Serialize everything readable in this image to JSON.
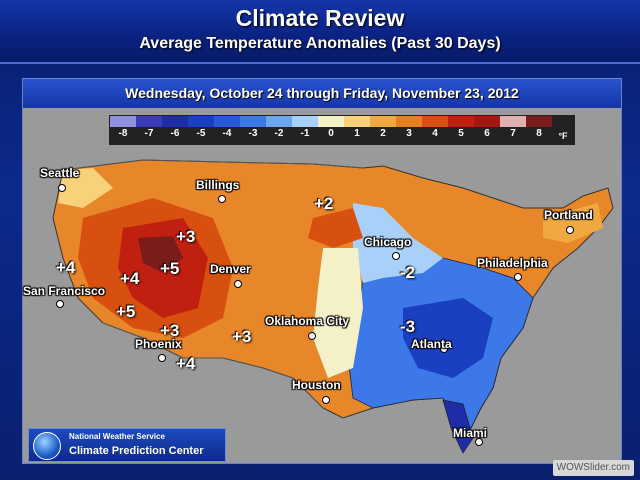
{
  "header": {
    "title": "Climate Review",
    "subtitle": "Average Temperature Anomalies (Past 30 Days)"
  },
  "date_range": "Wednesday, October 24 through Friday, November 23, 2012",
  "legend": {
    "unit": "°F",
    "items": [
      {
        "label": "-8",
        "color": "#9090e0"
      },
      {
        "label": "-7",
        "color": "#3c3cb8"
      },
      {
        "label": "-6",
        "color": "#1e2ca8"
      },
      {
        "label": "-5",
        "color": "#1a3fc0"
      },
      {
        "label": "-4",
        "color": "#2a5ad8"
      },
      {
        "label": "-3",
        "color": "#3c78e8"
      },
      {
        "label": "-2",
        "color": "#6fa4f0"
      },
      {
        "label": "-1",
        "color": "#a8d0f8"
      },
      {
        "label": "0",
        "color": "#f4f0c8"
      },
      {
        "label": "1",
        "color": "#f8d27a"
      },
      {
        "label": "2",
        "color": "#f0a840"
      },
      {
        "label": "3",
        "color": "#e88020"
      },
      {
        "label": "4",
        "color": "#d85010"
      },
      {
        "label": "5",
        "color": "#c02010"
      },
      {
        "label": "6",
        "color": "#a01810"
      },
      {
        "label": "7",
        "color": "#e0b0b0"
      },
      {
        "label": "8",
        "color": "#7a1c1c"
      }
    ]
  },
  "cities": [
    {
      "name": "Seattle"
    },
    {
      "name": "Billings"
    },
    {
      "name": "Portland"
    },
    {
      "name": "Chicago"
    },
    {
      "name": "Philadelphia"
    },
    {
      "name": "San Francisco"
    },
    {
      "name": "Denver"
    },
    {
      "name": "Oklahoma City"
    },
    {
      "name": "Atlanta"
    },
    {
      "name": "Phoenix"
    },
    {
      "name": "Houston"
    },
    {
      "name": "Miami"
    }
  ],
  "anomaly_labels": [
    {
      "value": "+2"
    },
    {
      "value": "+3"
    },
    {
      "value": "+4"
    },
    {
      "value": "+5"
    },
    {
      "value": "+4"
    },
    {
      "value": "+5"
    },
    {
      "value": "+3"
    },
    {
      "value": "+3"
    },
    {
      "value": "+4"
    },
    {
      "value": "-2"
    },
    {
      "value": "-3"
    }
  ],
  "footer": {
    "agency": "National Weather Service",
    "center": "Climate Prediction Center",
    "watermark": "WOWSlider.com"
  }
}
